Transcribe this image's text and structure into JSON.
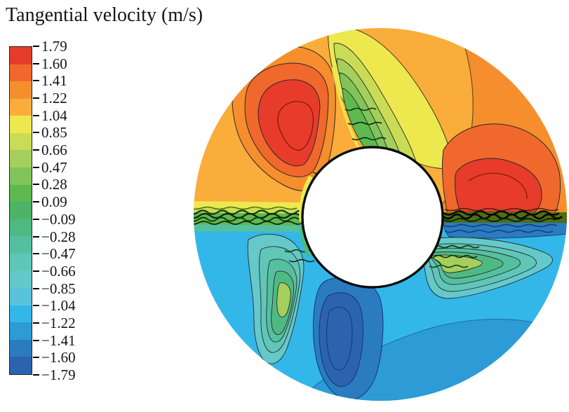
{
  "title": "Tangential velocity (m/s)",
  "chart_data": {
    "type": "heatmap",
    "subtype": "filled-contour-plot",
    "title": "Tangential velocity (m/s)",
    "variable": "Tangential velocity",
    "units": "m/s",
    "domain_shape": "annulus (circular cross-section around a white inner cylinder)",
    "legend_position": "left",
    "levels": [
      1.79,
      1.6,
      1.41,
      1.22,
      1.04,
      0.85,
      0.66,
      0.47,
      0.28,
      0.09,
      -0.09,
      -0.28,
      -0.47,
      -0.66,
      -0.85,
      -1.04,
      -1.22,
      -1.41,
      -1.6,
      -1.79
    ],
    "level_labels": [
      "1.79",
      "1.60",
      "1.41",
      "1.22",
      "1.04",
      "0.85",
      "0.66",
      "0.47",
      "0.28",
      "0.09",
      "−0.09",
      "−0.28",
      "−0.47",
      "−0.66",
      "−0.85",
      "−1.04",
      "−1.22",
      "−1.41",
      "−1.60",
      "−1.79"
    ],
    "band_colors": [
      "#e73c2b",
      "#f1682c",
      "#f68e2e",
      "#faad3a",
      "#eee84f",
      "#cadc55",
      "#a4cf5c",
      "#80c45a",
      "#5fb951",
      "#4cb368",
      "#4eba83",
      "#55c09f",
      "#5fc6b8",
      "#65c9cb",
      "#5ac3dc",
      "#33b7e9",
      "#2c9bd6",
      "#2b7bc1",
      "#2b63ae"
    ],
    "features": [
      {
        "name": "upper-left positive vortex",
        "approx_peak_value": 1.79,
        "position": "upper-left of inner cylinder, tilted red core with nested orange rings"
      },
      {
        "name": "right positive lobe",
        "approx_peak_value": 1.79,
        "position": "right of inner cylinder just above midline, red core in orange field"
      },
      {
        "name": "descending low-velocity tongue",
        "approx_value_range": [
          0.09,
          1.04
        ],
        "position": "yellow-green leaf from top rim down to top of inner cylinder"
      },
      {
        "name": "bottom negative vortex",
        "approx_peak_value": -1.79,
        "position": "dark blue core below inner cylinder"
      },
      {
        "name": "lower-left negative tongue",
        "approx_value_range": [
          -0.66,
          -0.09
        ],
        "position": "teal wedge below-left of inner cylinder"
      },
      {
        "name": "right negative tongue",
        "approx_value_range": [
          -0.66,
          -0.09
        ],
        "position": "teal leaf extending right of inner cylinder below midline"
      },
      {
        "name": "shear layer",
        "description": "dense dark contour band along horizontal midline separating positive (upper, warm) and negative (lower, cool) tangential velocity"
      }
    ],
    "background_bands": {
      "top": "1.04 to 1.22 (amber)",
      "upper_right": "1.22 to 1.41 (orange)",
      "bottom_left": "−1.04 to −1.22 (cyan)",
      "bottom_right": "−1.22 to −1.41 (blue)"
    }
  },
  "plot": {
    "inner_region_fill": "#ffffff",
    "inner_rim_color": "#0c0c0c",
    "contour_line_color": "#2a2a2a"
  },
  "inks": {
    "dark_green": "#0f3a0f",
    "deep_green": "#0c2408",
    "black": "#070707",
    "navy": "#16407a",
    "olive": "#4f6f10",
    "brown": "#3a2a05",
    "moss": "#2a3a05",
    "dark_red": "#8a1a14",
    "dark_navy": "#14366e",
    "blue_edge": "#1f6fa8",
    "boundary_brown": "#5a4a14"
  }
}
